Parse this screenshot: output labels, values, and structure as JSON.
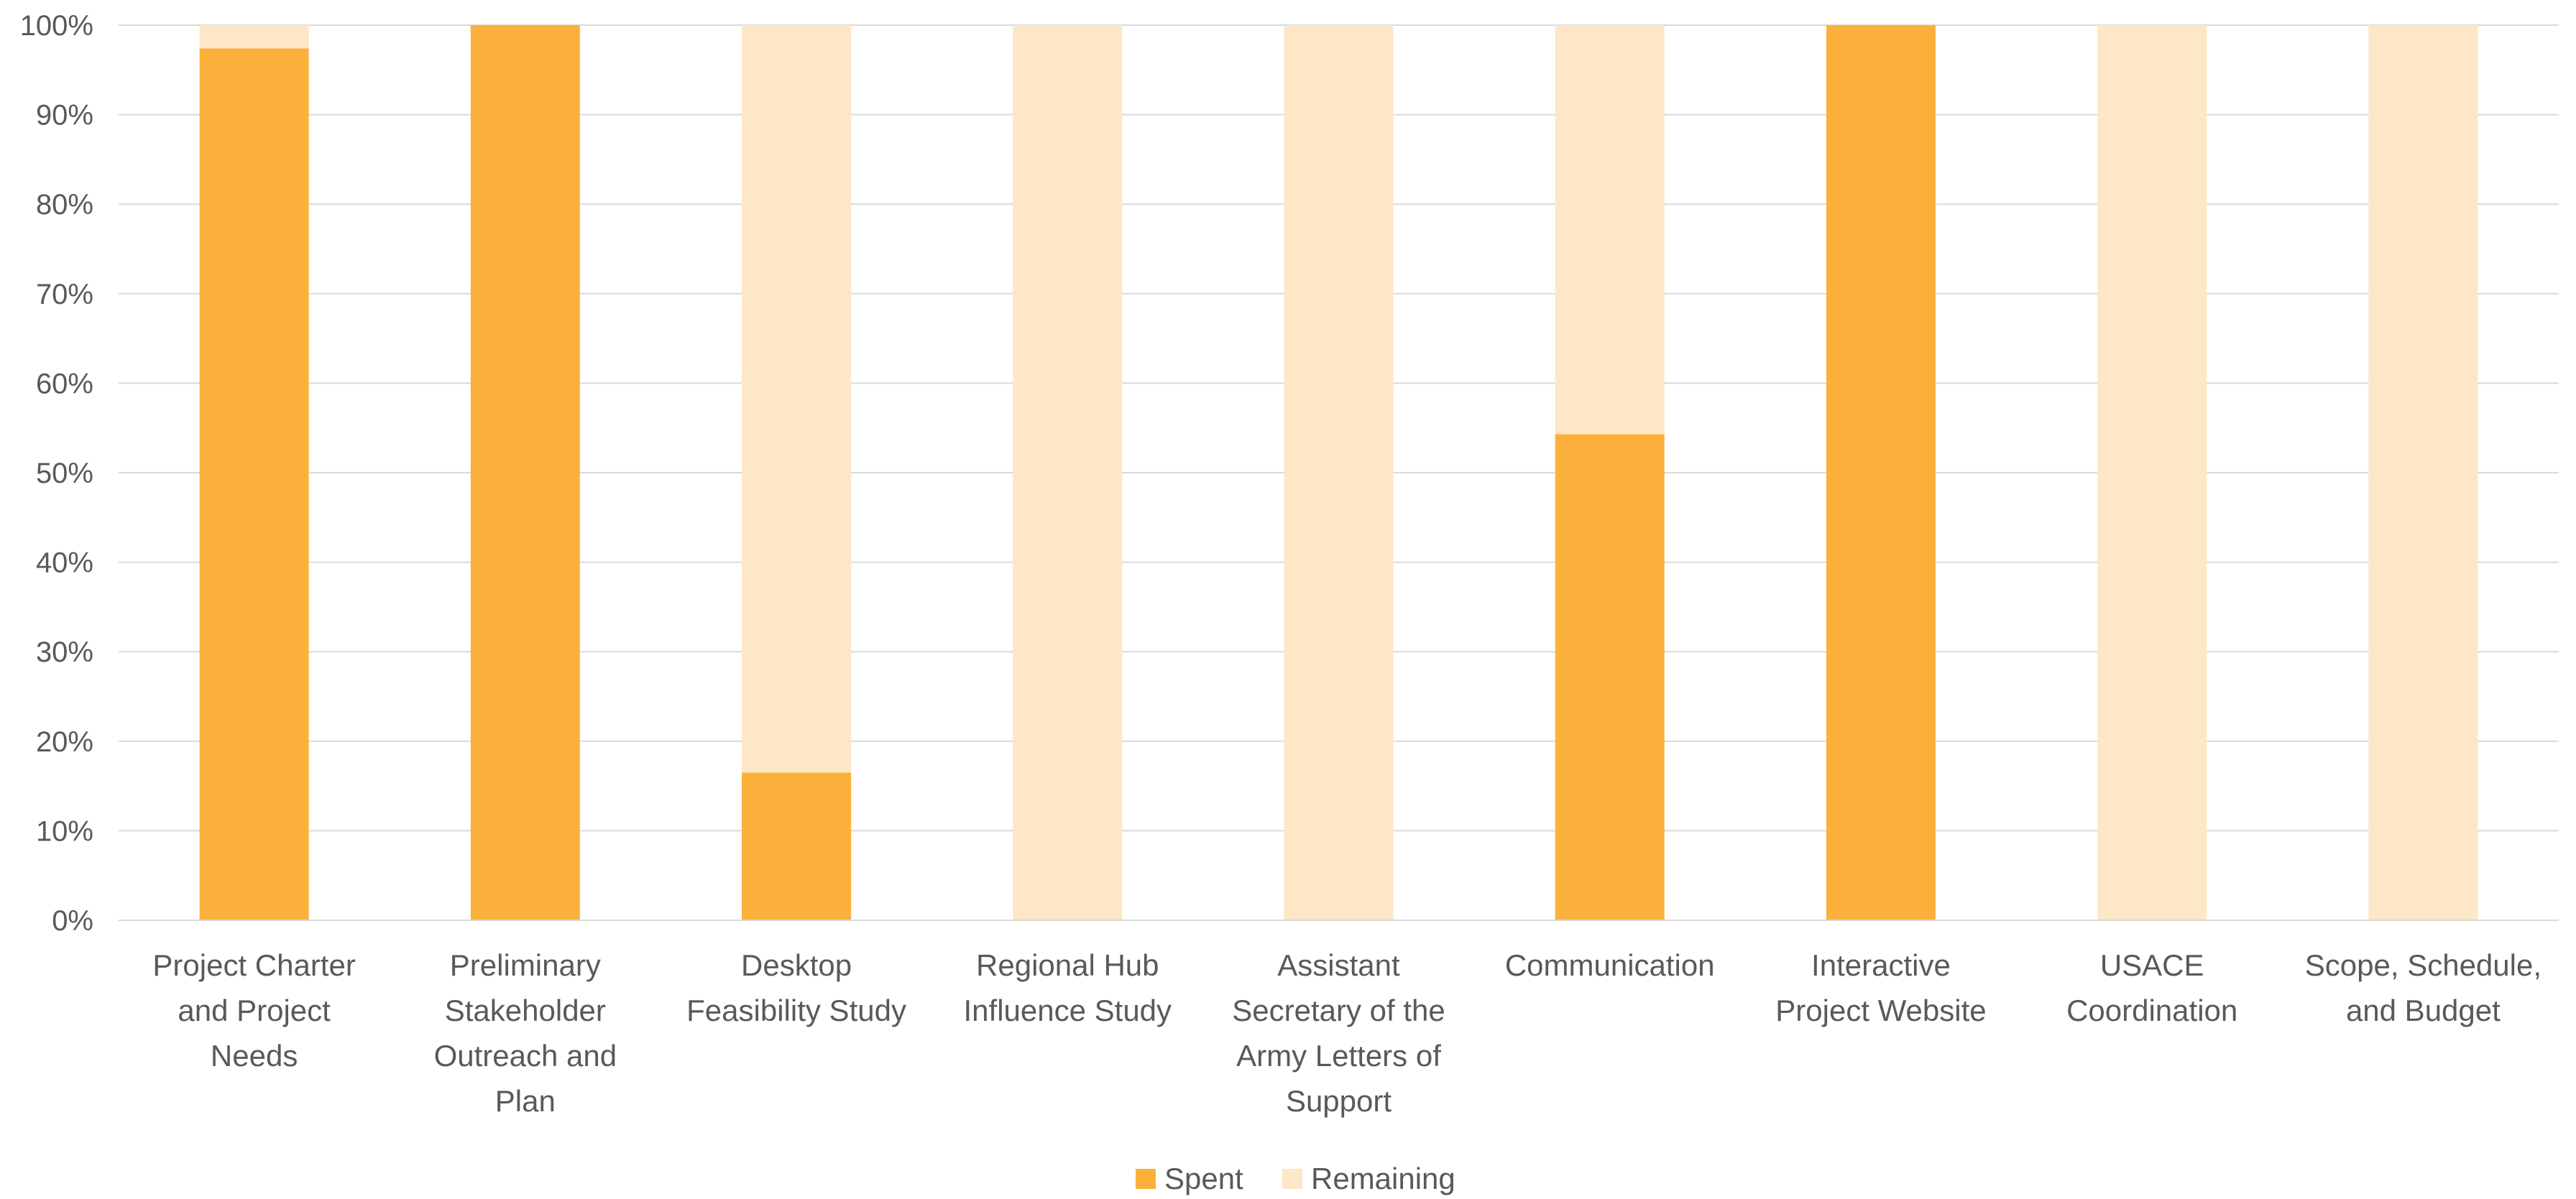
{
  "chart_data": {
    "type": "bar",
    "stacked": true,
    "normalized": true,
    "categories": [
      "Project Charter and Project Needs",
      "Preliminary Stakeholder Outreach and Plan",
      "Desktop Feasibility Study",
      "Regional Hub Influence Study",
      "Assistant Secretary of the Army Letters of Support",
      "Communication",
      "Interactive Project Website",
      "USACE Coordination",
      "Scope, Schedule, and Budget"
    ],
    "category_lines": [
      [
        "Project Charter",
        "and Project",
        "Needs"
      ],
      [
        "Preliminary",
        "Stakeholder",
        "Outreach and",
        "Plan"
      ],
      [
        "Desktop",
        "Feasibility Study"
      ],
      [
        "Regional Hub",
        "Influence Study"
      ],
      [
        "Assistant",
        "Secretary of the",
        "Army Letters of",
        "Support"
      ],
      [
        "Communication"
      ],
      [
        "Interactive",
        "Project Website"
      ],
      [
        "USACE",
        "Coordination"
      ],
      [
        "Scope, Schedule,",
        "and Budget"
      ]
    ],
    "series": [
      {
        "name": "Spent",
        "color": "#FBB03B",
        "values": [
          97.4,
          100,
          16.5,
          0,
          0,
          54.3,
          100,
          0,
          0
        ]
      },
      {
        "name": "Remaining",
        "color": "#FDE7C7",
        "values": [
          2.6,
          0,
          83.5,
          100,
          100,
          45.7,
          0,
          100,
          100
        ]
      }
    ],
    "ylim": [
      0,
      100
    ],
    "yticks": [
      "0%",
      "10%",
      "20%",
      "30%",
      "40%",
      "50%",
      "60%",
      "70%",
      "80%",
      "90%",
      "100%"
    ],
    "grid": true,
    "gridline_color": "#D9D9D9",
    "legend_position": "bottom-center",
    "title": "",
    "xlabel": "",
    "ylabel": ""
  }
}
